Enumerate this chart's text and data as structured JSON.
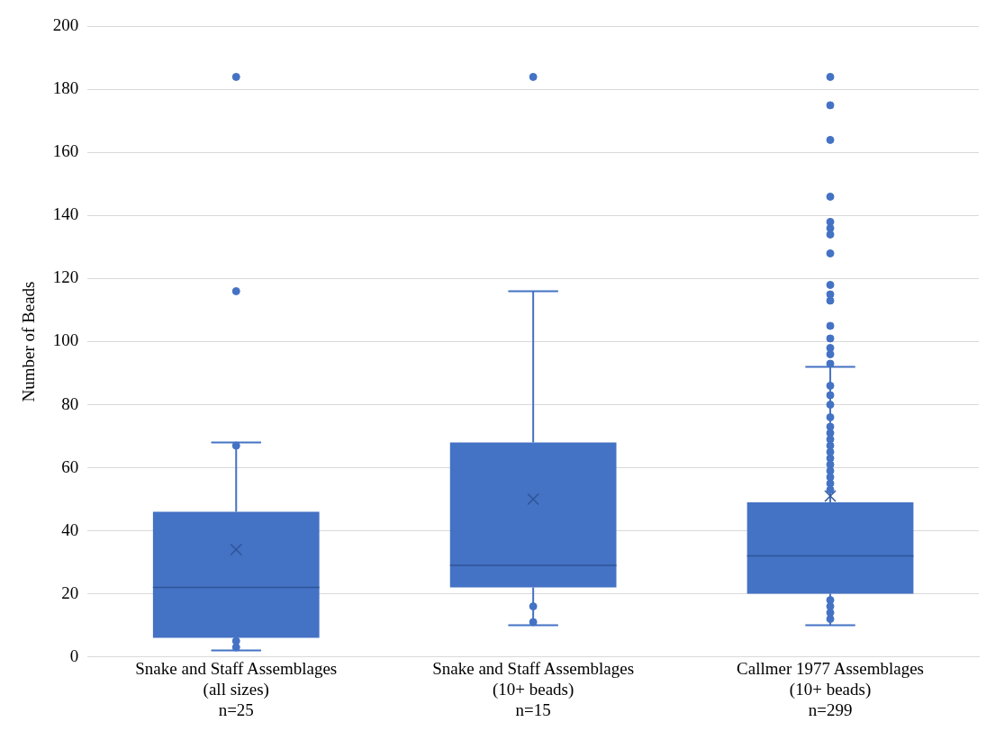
{
  "chart_data": {
    "type": "box",
    "ylabel": "Number of Beads",
    "categories": [
      "Snake and Staff Assemblages\n(all sizes)\nn=25",
      "Snake and Staff Assemblages\n(10+ beads)\nn=15",
      "Callmer 1977 Assemblages\n(10+ beads)\nn=299"
    ],
    "color": "#4472c4",
    "boxes": [
      {
        "low": 2,
        "q1": 6,
        "median": 22,
        "q3": 46,
        "high": 68,
        "mean": 34,
        "outliers": [
          116,
          184
        ]
      },
      {
        "low": 10,
        "q1": 22,
        "median": 29,
        "q3": 68,
        "high": 116,
        "mean": 50,
        "outliers": [
          184
        ]
      },
      {
        "low": 10,
        "q1": 20,
        "median": 32,
        "q3": 49,
        "high": 92,
        "mean": 51,
        "outliers": [
          184,
          175,
          164,
          146,
          138,
          136,
          134,
          128,
          118,
          115,
          113,
          105,
          101,
          98,
          96,
          93
        ]
      }
    ],
    "series": [
      {
        "type": "scatter",
        "color": "#4472c4",
        "x": [
          "Snake and Staff Assemblages\n(all sizes)\nn=25",
          "Snake and Staff Assemblages\n(all sizes)\nn=25",
          "Snake and Staff Assemblages\n(all sizes)\nn=25",
          "Snake and Staff Assemblages\n(10+ beads)\nn=15",
          "Snake and Staff Assemblages\n(10+ beads)\nn=15",
          "Callmer 1977 Assemblages\n(10+ beads)\nn=299",
          "Callmer 1977 Assemblages\n(10+ beads)\nn=299",
          "Callmer 1977 Assemblages\n(10+ beads)\nn=299",
          "Callmer 1977 Assemblages\n(10+ beads)\nn=299",
          "Callmer 1977 Assemblages\n(10+ beads)\nn=299",
          "Callmer 1977 Assemblages\n(10+ beads)\nn=299",
          "Callmer 1977 Assemblages\n(10+ beads)\nn=299",
          "Callmer 1977 Assemblages\n(10+ beads)\nn=299",
          "Callmer 1977 Assemblages\n(10+ beads)\nn=299",
          "Callmer 1977 Assemblages\n(10+ beads)\nn=299",
          "Callmer 1977 Assemblages\n(10+ beads)\nn=299",
          "Callmer 1977 Assemblages\n(10+ beads)\nn=299",
          "Callmer 1977 Assemblages\n(10+ beads)\nn=299",
          "Callmer 1977 Assemblages\n(10+ beads)\nn=299",
          "Callmer 1977 Assemblages\n(10+ beads)\nn=299",
          "Callmer 1977 Assemblages\n(10+ beads)\nn=299",
          "Callmer 1977 Assemblages\n(10+ beads)\nn=299",
          "Callmer 1977 Assemblages\n(10+ beads)\nn=299",
          "Callmer 1977 Assemblages\n(10+ beads)\nn=299"
        ],
        "values": [
          67,
          3,
          5,
          16,
          11,
          86,
          83,
          80,
          76,
          73,
          71,
          69,
          67,
          65,
          63,
          61,
          59,
          57,
          55,
          53,
          18,
          16,
          14,
          12
        ]
      }
    ],
    "ylim": [
      0,
      200
    ],
    "yticks": [
      0,
      20,
      40,
      60,
      80,
      100,
      120,
      140,
      160,
      180,
      200
    ],
    "grid": "y",
    "legend": false,
    "marker": "circle"
  }
}
